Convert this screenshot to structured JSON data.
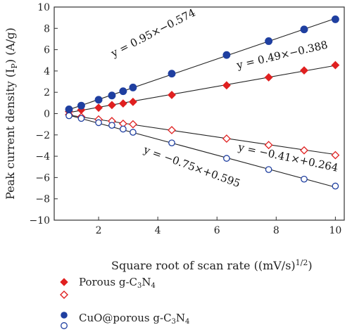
{
  "chart_data": {
    "type": "scatter",
    "xlabel": "Square root of scan rate ((mV/s)",
    "xlabel_exp": "1/2",
    "xlabel_end": ")",
    "ylabel": "Peak current density (I",
    "ylabel_sub": "P",
    "ylabel_end": ") (A/g)",
    "xlim": [
      0.5,
      10.3
    ],
    "ylim": [
      -10,
      10
    ],
    "xticks": [
      2,
      4,
      6,
      8,
      10
    ],
    "yticks": [
      -10,
      -8,
      -6,
      -4,
      -2,
      0,
      2,
      4,
      6,
      8,
      10
    ],
    "x": [
      1.0,
      1.414,
      2.0,
      2.449,
      2.828,
      3.162,
      4.472,
      6.325,
      7.746,
      8.944,
      10.0
    ],
    "series": [
      {
        "group": "Porous",
        "marker": "diamond-filled",
        "color": "#e02020",
        "values": [
          0.2,
          0.35,
          0.55,
          0.8,
          0.95,
          1.1,
          1.75,
          2.65,
          3.4,
          4.05,
          4.55
        ]
      },
      {
        "group": "Porous",
        "marker": "diamond-open",
        "color": "#e02020",
        "values": [
          -0.1,
          -0.3,
          -0.55,
          -0.7,
          -0.95,
          -1.0,
          -1.55,
          -2.35,
          -2.95,
          -3.45,
          -3.9
        ]
      },
      {
        "group": "CuO",
        "marker": "circle-filled",
        "color": "#1f3fa0",
        "values": [
          0.4,
          0.75,
          1.3,
          1.7,
          2.1,
          2.45,
          3.75,
          5.5,
          6.8,
          7.9,
          8.85
        ]
      },
      {
        "group": "CuO",
        "marker": "circle-open",
        "color": "#1f3fa0",
        "values": [
          -0.2,
          -0.45,
          -0.85,
          -1.1,
          -1.45,
          -1.75,
          -2.75,
          -4.2,
          -5.25,
          -6.15,
          -6.8
        ]
      }
    ],
    "fit_lines": [
      {
        "slope": 0.95,
        "intercept": -0.574
      },
      {
        "slope": 0.49,
        "intercept": -0.388
      },
      {
        "slope": -0.41,
        "intercept": 0.264
      },
      {
        "slope": -0.75,
        "intercept": 0.595
      }
    ],
    "annotations": [
      {
        "text": "y = 0.95×−0.574",
        "x": 2.5,
        "y": 5.3,
        "angle": -27
      },
      {
        "text": "y = 0.49×−0.388",
        "x": 6.7,
        "y": 4.2,
        "angle": -13
      },
      {
        "text": "y = −0.41×+0.264",
        "x": 6.7,
        "y": -3.45,
        "angle": 12
      },
      {
        "text": "y = −0.75×+0.595",
        "x": 3.5,
        "y": -3.65,
        "angle": 20
      }
    ],
    "legend": [
      {
        "label": "Porous g-C",
        "sub1": "3",
        "mid": "N",
        "sub2": "4"
      },
      {
        "label": "CuO@porous g-C",
        "sub1": "3",
        "mid": "N",
        "sub2": "4"
      }
    ],
    "legend_placement": "below",
    "grid": false
  }
}
